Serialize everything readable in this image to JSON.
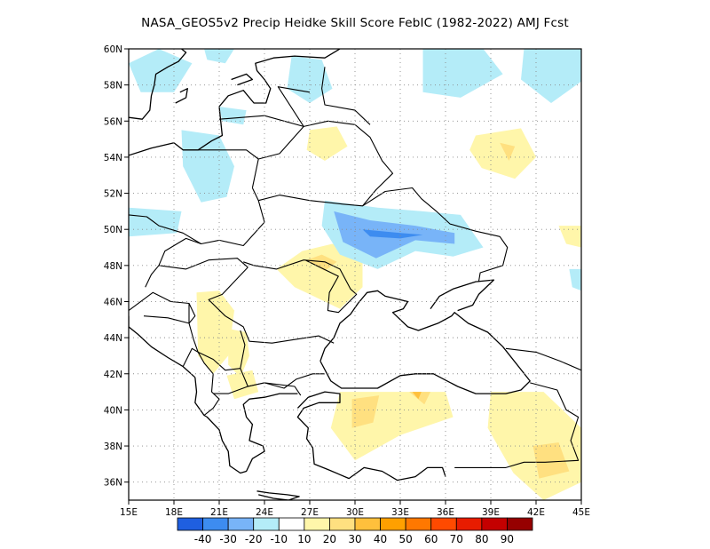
{
  "title": "NASA_GEOS5v2 Precip Heidke Skill Score FebIC (1982-2022) AMJ Fcst",
  "map": {
    "projection": "lat-lon",
    "lon_range": [
      15,
      45
    ],
    "lat_range": [
      35,
      60
    ],
    "lon_ticks": [
      "15E",
      "18E",
      "21E",
      "24E",
      "27E",
      "30E",
      "33E",
      "36E",
      "39E",
      "42E",
      "45E"
    ],
    "lat_ticks": [
      "36N",
      "38N",
      "40N",
      "42N",
      "44N",
      "46N",
      "48N",
      "50N",
      "52N",
      "54N",
      "56N",
      "58N",
      "60N"
    ],
    "gridlines": "dotted"
  },
  "colorbar": {
    "colors": [
      "#1f5fe0",
      "#3d8cf0",
      "#78b4f8",
      "#b4ecf8",
      "#ffffff",
      "#fff6aa",
      "#ffe080",
      "#ffc03c",
      "#ffa000",
      "#ff7800",
      "#ff4a00",
      "#e81c00",
      "#c40000",
      "#960000"
    ],
    "labels": [
      "-40",
      "-30",
      "-20",
      "-10",
      "10",
      "20",
      "30",
      "40",
      "50",
      "60",
      "70",
      "80",
      "90"
    ]
  },
  "chart_data": {
    "type": "heatmap",
    "title": "NASA_GEOS5v2 Precip Heidke Skill Score FebIC (1982-2022) AMJ Fcst",
    "xlabel": "",
    "ylabel": "",
    "x_range": [
      15,
      45
    ],
    "y_range": [
      35,
      60
    ],
    "levels": [
      -40,
      -30,
      -20,
      -10,
      10,
      20,
      30,
      40,
      50,
      60,
      70,
      80,
      90
    ],
    "regions": [
      {
        "range": "10 to 20",
        "lon_lat": [
          [
            26.5,
            48.8
          ],
          [
            28.5,
            49.2
          ],
          [
            30.5,
            48.6
          ],
          [
            30.5,
            46.8
          ],
          [
            29.0,
            45.6
          ],
          [
            27.5,
            46.2
          ],
          [
            26.0,
            46.8
          ],
          [
            24.8,
            47.8
          ]
        ]
      },
      {
        "range": "20 to 30",
        "lon_lat": [
          [
            26.8,
            48.3
          ],
          [
            27.8,
            48.6
          ],
          [
            28.8,
            48.2
          ],
          [
            28.0,
            47.7
          ]
        ]
      },
      {
        "range": "10 to 20",
        "lon_lat": [
          [
            19.5,
            46.5
          ],
          [
            21.0,
            46.6
          ],
          [
            22.0,
            45.5
          ],
          [
            21.6,
            43.0
          ],
          [
            20.6,
            42.0
          ],
          [
            19.6,
            43.0
          ]
        ]
      },
      {
        "range": "10 to 20",
        "lon_lat": [
          [
            21.6,
            44.5
          ],
          [
            22.8,
            44.3
          ],
          [
            23.0,
            43.0
          ],
          [
            22.4,
            41.8
          ],
          [
            21.6,
            42.5
          ]
        ]
      },
      {
        "range": "10 to 20",
        "lon_lat": [
          [
            21.5,
            41.9
          ],
          [
            23.2,
            42.2
          ],
          [
            23.6,
            41.0
          ],
          [
            22.0,
            40.6
          ]
        ]
      },
      {
        "range": "10 to 20",
        "lon_lat": [
          [
            27.0,
            55.5
          ],
          [
            28.8,
            55.7
          ],
          [
            29.5,
            54.6
          ],
          [
            28.0,
            53.8
          ],
          [
            26.8,
            54.4
          ]
        ]
      },
      {
        "range": "10 to 20",
        "lon_lat": [
          [
            38.0,
            55.2
          ],
          [
            41.0,
            55.6
          ],
          [
            42.0,
            54.0
          ],
          [
            40.6,
            52.8
          ],
          [
            38.4,
            53.4
          ],
          [
            37.6,
            54.4
          ]
        ]
      },
      {
        "range": "20 to 30",
        "lon_lat": [
          [
            39.6,
            54.8
          ],
          [
            40.6,
            54.6
          ],
          [
            40.2,
            53.8
          ]
        ]
      },
      {
        "range": "10 to 20",
        "lon_lat": [
          [
            29.0,
            41.0
          ],
          [
            36.0,
            41.0
          ],
          [
            36.5,
            39.6
          ],
          [
            33.0,
            38.6
          ],
          [
            30.0,
            37.2
          ],
          [
            28.4,
            39.0
          ]
        ]
      },
      {
        "range": "20 to 30",
        "lon_lat": [
          [
            29.8,
            40.6
          ],
          [
            31.6,
            40.8
          ],
          [
            31.2,
            39.3
          ],
          [
            29.8,
            39.0
          ]
        ]
      },
      {
        "range": "20 to 30",
        "lon_lat": [
          [
            33.6,
            41.0
          ],
          [
            35.0,
            41.0
          ],
          [
            34.6,
            40.3
          ]
        ]
      },
      {
        "range": "30 to 40",
        "lon_lat": [
          [
            33.8,
            41.0
          ],
          [
            34.4,
            41.0
          ],
          [
            34.2,
            40.6
          ]
        ]
      },
      {
        "range": "10 to 20",
        "lon_lat": [
          [
            39.0,
            41.0
          ],
          [
            42.5,
            41.0
          ],
          [
            45.0,
            39.0
          ],
          [
            45.0,
            36.0
          ],
          [
            42.5,
            35.0
          ],
          [
            40.5,
            36.5
          ],
          [
            38.8,
            39.0
          ]
        ]
      },
      {
        "range": "20 to 30",
        "lon_lat": [
          [
            41.8,
            38.0
          ],
          [
            43.5,
            38.2
          ],
          [
            44.2,
            36.6
          ],
          [
            42.2,
            36.2
          ]
        ]
      },
      {
        "range": "10 to 20",
        "lon_lat": [
          [
            43.5,
            50.2
          ],
          [
            45.0,
            50.2
          ],
          [
            45.0,
            49.0
          ],
          [
            44.0,
            49.2
          ]
        ]
      },
      {
        "range": "-20 to -10",
        "lon_lat": [
          [
            28.0,
            51.6
          ],
          [
            31.5,
            51.2
          ],
          [
            34.5,
            51.0
          ],
          [
            37.0,
            50.8
          ],
          [
            38.5,
            49.0
          ],
          [
            36.5,
            48.5
          ],
          [
            34.0,
            48.8
          ],
          [
            31.5,
            47.8
          ],
          [
            29.0,
            48.6
          ],
          [
            27.8,
            50.2
          ]
        ]
      },
      {
        "range": "-30 to -20",
        "lon_lat": [
          [
            28.6,
            51.0
          ],
          [
            31.0,
            50.5
          ],
          [
            34.0,
            50.2
          ],
          [
            36.6,
            49.8
          ],
          [
            36.6,
            49.2
          ],
          [
            34.0,
            49.4
          ],
          [
            31.4,
            48.4
          ],
          [
            29.2,
            49.3
          ]
        ]
      },
      {
        "range": "-40 to -30",
        "lon_lat": [
          [
            30.5,
            50.0
          ],
          [
            33.0,
            49.8
          ],
          [
            34.5,
            49.7
          ],
          [
            33.0,
            49.5
          ],
          [
            31.0,
            49.6
          ]
        ]
      },
      {
        "range": "-20 to -10",
        "lon_lat": [
          [
            18.5,
            55.5
          ],
          [
            21.0,
            55.2
          ],
          [
            22.0,
            53.5
          ],
          [
            21.5,
            51.8
          ],
          [
            19.8,
            51.5
          ],
          [
            18.6,
            53.5
          ]
        ]
      },
      {
        "range": "-20 to -10",
        "lon_lat": [
          [
            21.0,
            56.8
          ],
          [
            22.8,
            56.6
          ],
          [
            22.6,
            55.8
          ],
          [
            21.2,
            56.0
          ]
        ]
      },
      {
        "range": "-20 to -10",
        "lon_lat": [
          [
            15.0,
            59.2
          ],
          [
            17.0,
            60.0
          ],
          [
            19.2,
            59.2
          ],
          [
            18.0,
            57.6
          ],
          [
            15.8,
            57.6
          ]
        ]
      },
      {
        "range": "-20 to -10",
        "lon_lat": [
          [
            20.0,
            60.0
          ],
          [
            22.0,
            60.0
          ],
          [
            21.4,
            59.2
          ],
          [
            20.2,
            59.4
          ]
        ]
      },
      {
        "range": "-20 to -10",
        "lon_lat": [
          [
            25.8,
            59.6
          ],
          [
            27.8,
            59.4
          ],
          [
            28.5,
            57.8
          ],
          [
            27.0,
            57.0
          ],
          [
            25.5,
            57.8
          ]
        ]
      },
      {
        "range": "-20 to -10",
        "lon_lat": [
          [
            34.5,
            60.0
          ],
          [
            38.5,
            60.0
          ],
          [
            39.8,
            58.6
          ],
          [
            37.0,
            57.3
          ],
          [
            34.5,
            57.6
          ]
        ]
      },
      {
        "range": "-20 to -10",
        "lon_lat": [
          [
            41.2,
            60.0
          ],
          [
            45.0,
            60.0
          ],
          [
            45.0,
            58.2
          ],
          [
            43.0,
            57.0
          ],
          [
            41.0,
            58.3
          ]
        ]
      },
      {
        "range": "-20 to -10",
        "lon_lat": [
          [
            15.0,
            51.2
          ],
          [
            18.5,
            51.0
          ],
          [
            18.2,
            49.8
          ],
          [
            15.0,
            49.6
          ]
        ]
      },
      {
        "range": "-20 to -10",
        "lon_lat": [
          [
            44.2,
            47.8
          ],
          [
            45.0,
            47.8
          ],
          [
            45.0,
            46.6
          ],
          [
            44.4,
            46.8
          ]
        ]
      },
      {
        "range": "-20 to -10",
        "lon_lat": [
          [
            26.8,
            58.4
          ],
          [
            28.2,
            58.2
          ],
          [
            27.9,
            57.6
          ],
          [
            26.8,
            57.8
          ]
        ]
      }
    ]
  }
}
